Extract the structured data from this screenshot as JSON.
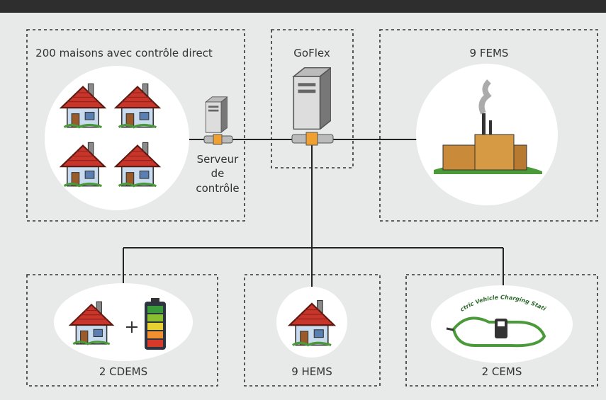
{
  "nodes": [
    {
      "label": "200 maisons avec contrôle direct"
    },
    {
      "label": "GoFlex"
    },
    {
      "label": "9 FEMS"
    },
    {
      "label": "2 CDEMS"
    },
    {
      "label": "9 HEMS"
    },
    {
      "label": "2 CEMS"
    }
  ],
  "server_label": [
    "Serveur",
    "de",
    "contrôle"
  ],
  "ev_logo_text": "Electric Vehicle Charging Stations"
}
